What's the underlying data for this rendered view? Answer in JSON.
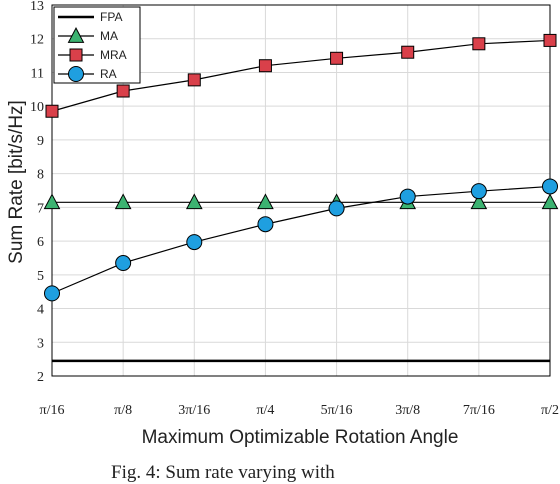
{
  "chart_data": {
    "type": "line",
    "categories": [
      "π/16",
      "π/8",
      "3π/16",
      "π/4",
      "5π/16",
      "3π/8",
      "7π/16",
      "π/2"
    ],
    "xlabel": "Maximum Optimizable Rotation Angle",
    "ylabel": "Sum Rate [bit/s/Hz]",
    "ylim": [
      2,
      13
    ],
    "yticks": [
      "2",
      "3",
      "4",
      "5",
      "6",
      "7",
      "8",
      "9",
      "10",
      "11",
      "12",
      "13"
    ],
    "grid": true,
    "legend_position": "top-left",
    "series": [
      {
        "name": "FPA",
        "marker": "none",
        "color": "#000000",
        "values": [
          2.45,
          2.45,
          2.45,
          2.45,
          2.45,
          2.45,
          2.45,
          2.45
        ]
      },
      {
        "name": "MA",
        "marker": "triangle",
        "color": "#3cb371",
        "values": [
          7.15,
          7.15,
          7.15,
          7.15,
          7.15,
          7.15,
          7.15,
          7.15
        ]
      },
      {
        "name": "MRA",
        "marker": "square",
        "color": "#d9404a",
        "values": [
          9.85,
          10.45,
          10.78,
          11.2,
          11.42,
          11.6,
          11.85,
          11.95
        ]
      },
      {
        "name": "RA",
        "marker": "circle",
        "color": "#1f9fe0",
        "values": [
          4.45,
          5.35,
          5.97,
          6.5,
          6.97,
          7.32,
          7.48,
          7.62
        ]
      }
    ],
    "caption": "Fig. 4: Sum rate varying with"
  }
}
